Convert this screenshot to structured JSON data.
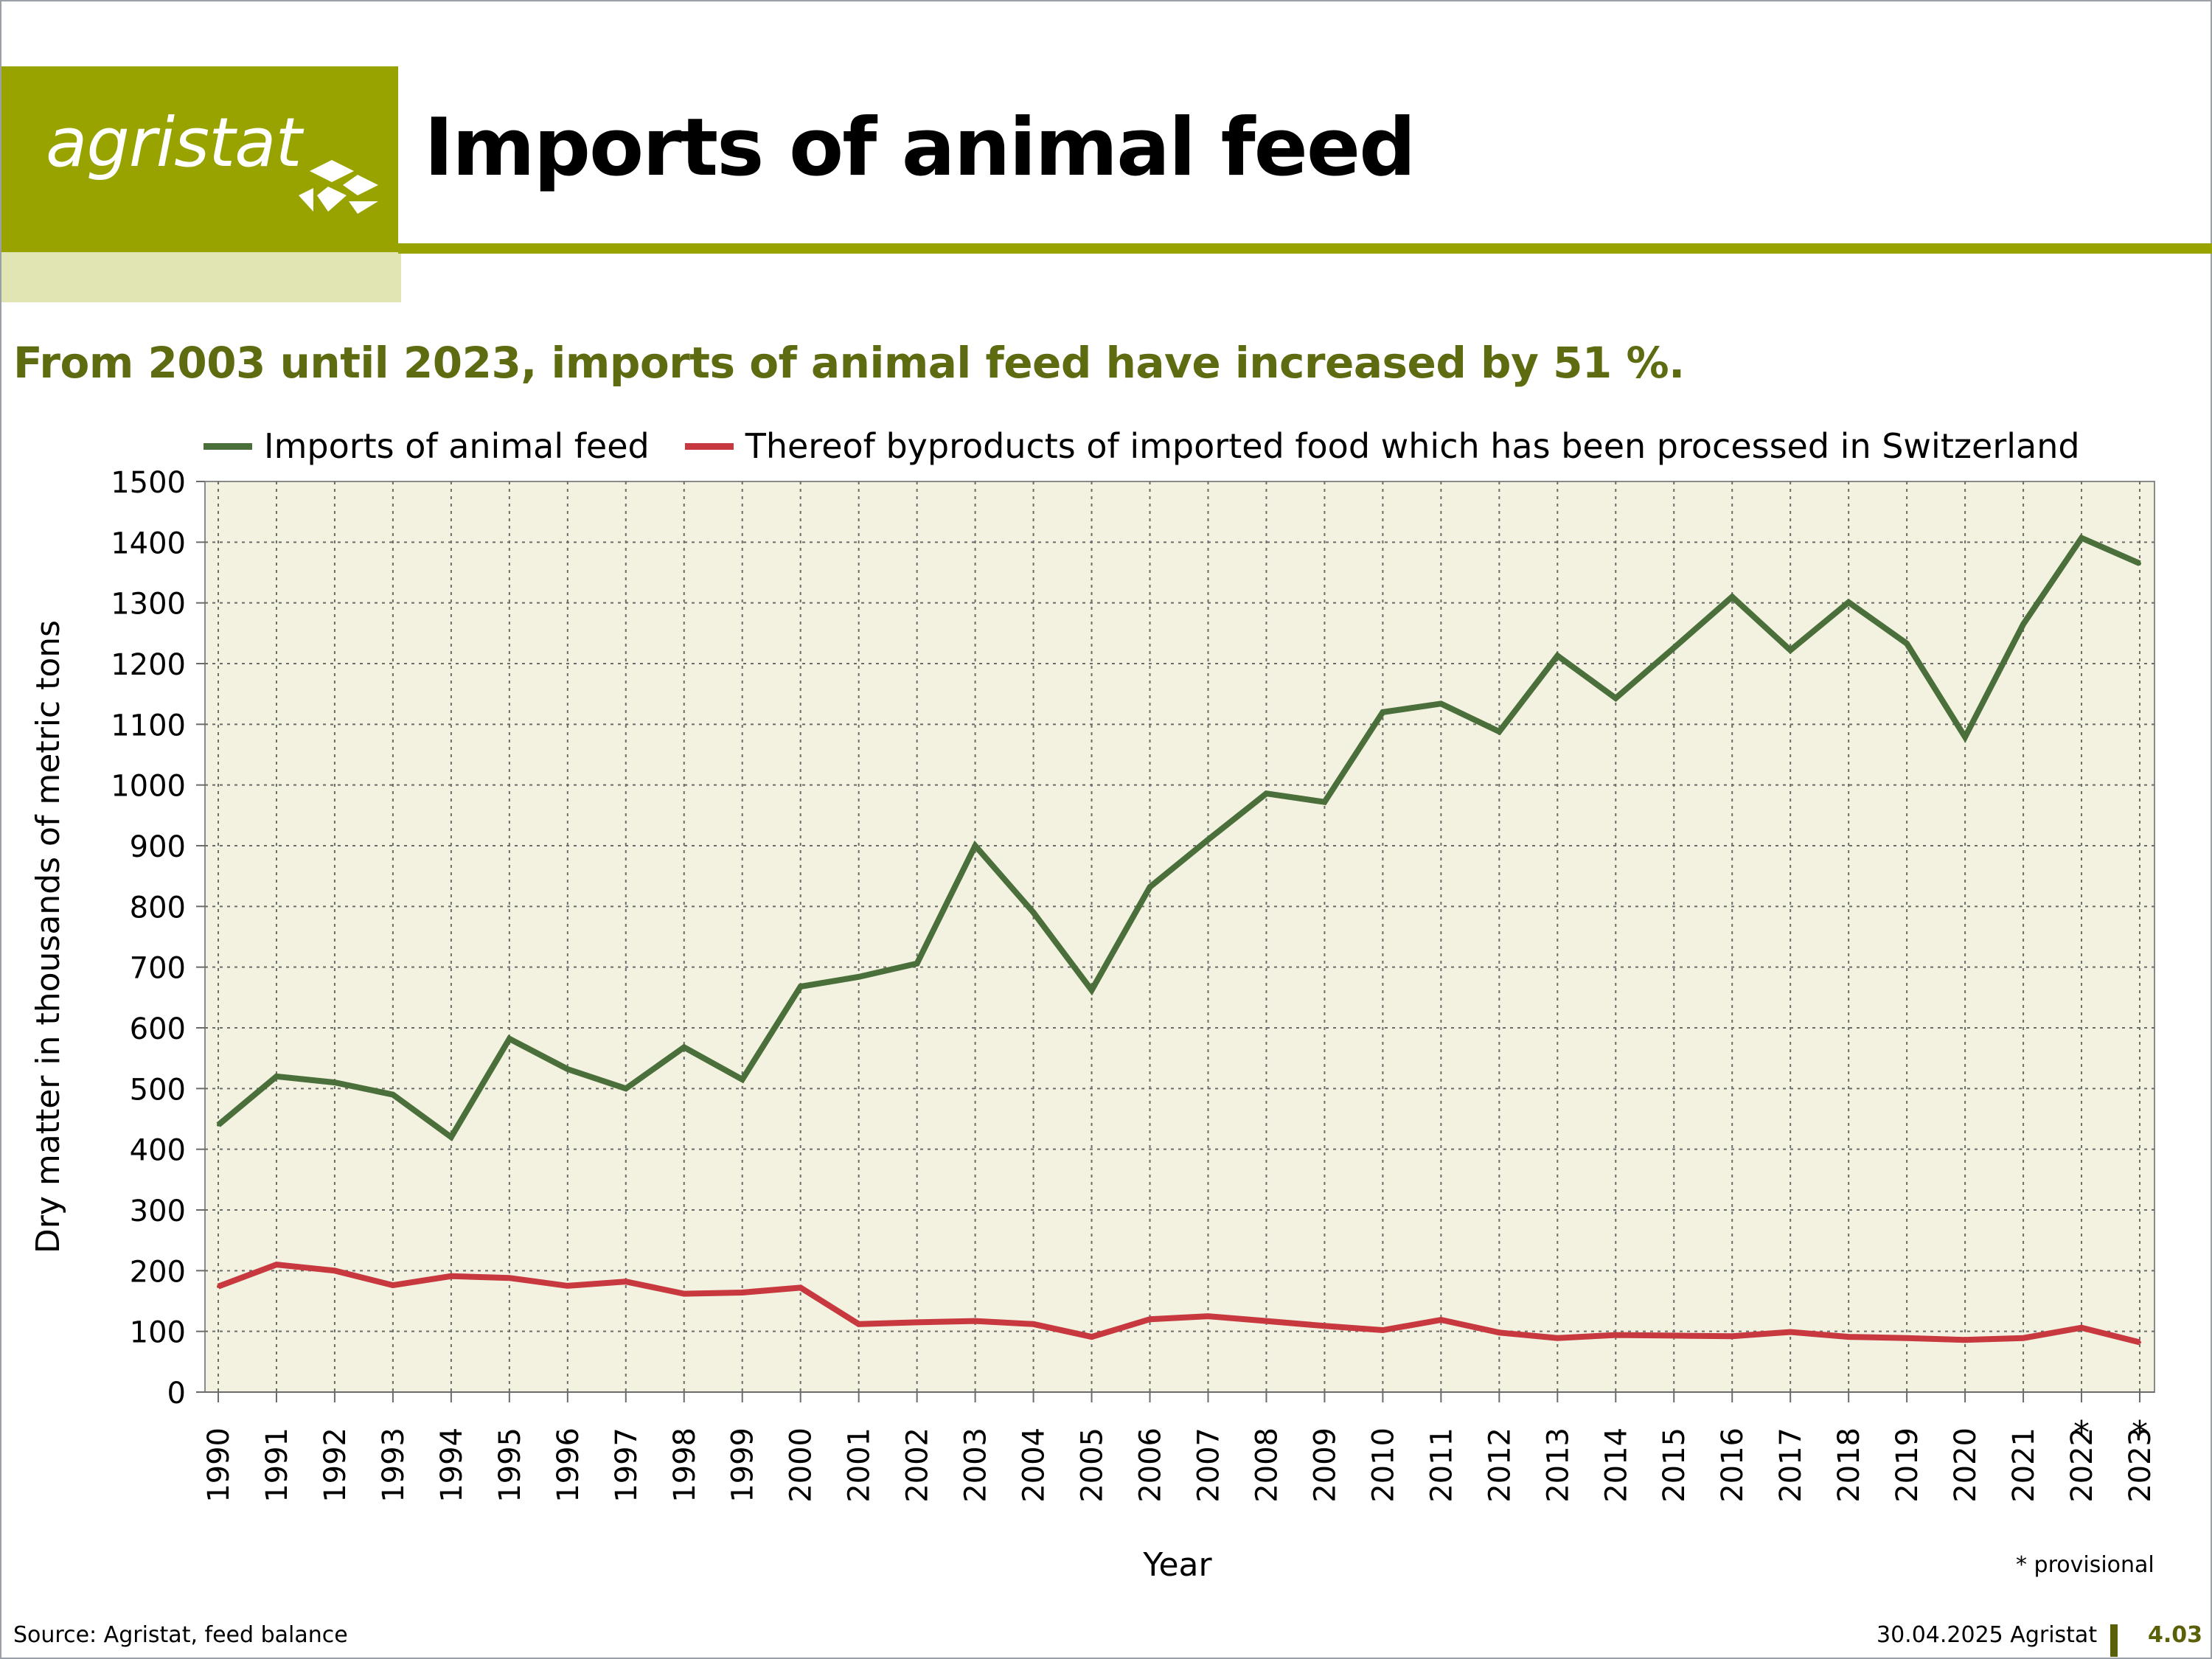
{
  "header": {
    "logo_text": "agristat",
    "title": "Imports of animal feed"
  },
  "subtitle": "From 2003 until 2023, imports of animal feed have increased by 51 %.",
  "footer": {
    "source": "Source: Agristat, feed balance",
    "date": "30.04.2025 Agristat",
    "number": "4.03",
    "note": "* provisional"
  },
  "colors": {
    "brand": "#98a300",
    "brand_light": "#e1e4b3",
    "plot_bg": "#f3f2e1",
    "series1": "#4a6f3a",
    "series2": "#c8393f",
    "subtitle": "#5e6b10"
  },
  "chart_data": {
    "type": "line",
    "title": "",
    "xlabel": "Year",
    "ylabel": "Dry matter in thousands of metric tons",
    "ylim": [
      0,
      1500
    ],
    "yticks": [
      0,
      100,
      200,
      300,
      400,
      500,
      600,
      700,
      800,
      900,
      1000,
      1100,
      1200,
      1300,
      1400,
      1500
    ],
    "grid": true,
    "legend": "top",
    "categories": [
      "1990",
      "1991",
      "1992",
      "1993",
      "1994",
      "1995",
      "1996",
      "1997",
      "1998",
      "1999",
      "2000",
      "2001",
      "2002",
      "2003",
      "2004",
      "2005",
      "2006",
      "2007",
      "2008",
      "2009",
      "2010",
      "2011",
      "2012",
      "2013",
      "2014",
      "2015",
      "2016",
      "2017",
      "2018",
      "2019",
      "2020",
      "2021",
      "2022",
      "2023"
    ],
    "category_marks": [
      "",
      "",
      "",
      "",
      "",
      "",
      "",
      "",
      "",
      "",
      "",
      "",
      "",
      "",
      "",
      "",
      "",
      "",
      "",
      "",
      "",
      "",
      "",
      "",
      "",
      "",
      "",
      "",
      "",
      "",
      "",
      "",
      "*",
      "*"
    ],
    "series": [
      {
        "name": "Imports of animal feed",
        "color": "#4a6f3a",
        "values": [
          440,
          520,
          510,
          490,
          420,
          582,
          532,
          500,
          568,
          515,
          668,
          684,
          706,
          900,
          790,
          662,
          832,
          910,
          986,
          972,
          1120,
          1134,
          1088,
          1213,
          1143,
          1226,
          1310,
          1222,
          1301,
          1233,
          1079,
          1265,
          1407,
          1365
        ]
      },
      {
        "name": "Thereof byproducts of imported food which has been processed in Switzerland",
        "color": "#c8393f",
        "values": [
          174,
          210,
          200,
          176,
          191,
          188,
          175,
          182,
          162,
          164,
          172,
          112,
          115,
          117,
          112,
          91,
          120,
          125,
          117,
          109,
          102,
          119,
          98,
          89,
          94,
          93,
          92,
          99,
          91,
          89,
          86,
          89,
          106,
          82
        ]
      }
    ]
  }
}
